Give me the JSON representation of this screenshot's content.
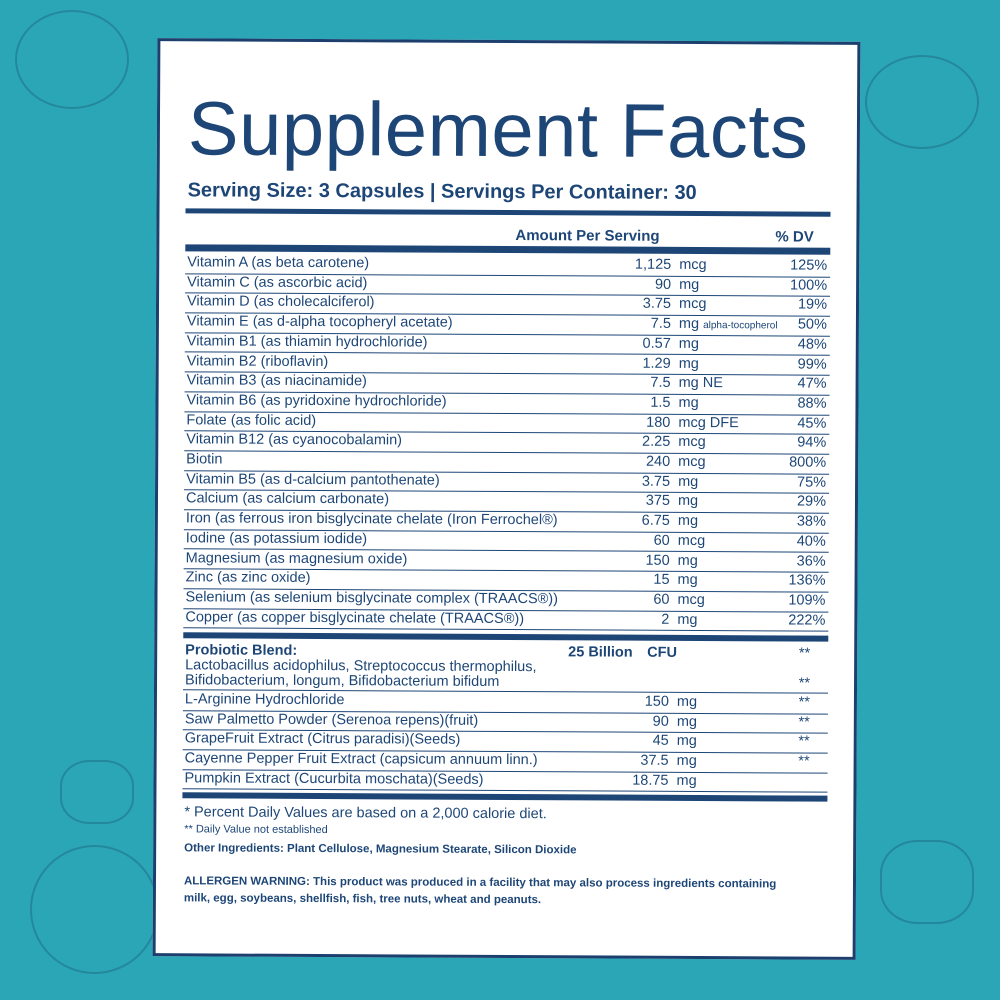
{
  "title": "Supplement Facts",
  "serving": "Serving Size: 3 Capsules | Servings Per Container: 30",
  "header": {
    "amount": "Amount Per Serving",
    "dv": "% DV"
  },
  "vitamins": [
    {
      "name": "Vitamin A (as beta carotene)",
      "amount": "1,125",
      "unit": "mcg",
      "dv": "125%"
    },
    {
      "name": "Vitamin C (as ascorbic acid)",
      "amount": "90",
      "unit": "mg",
      "dv": "100%"
    },
    {
      "name": "Vitamin D (as cholecalciferol)",
      "amount": "3.75",
      "unit": "mcg",
      "dv": "19%"
    },
    {
      "name": "Vitamin E (as d-alpha tocopheryl acetate)",
      "amount": "7.5",
      "unit": "mg",
      "unit_note": "alpha-tocopherol",
      "dv": "50%"
    },
    {
      "name": "Vitamin B1 (as thiamin hydrochloride)",
      "amount": "0.57",
      "unit": "mg",
      "dv": "48%"
    },
    {
      "name": "Vitamin B2 (riboflavin)",
      "amount": "1.29",
      "unit": "mg",
      "dv": "99%"
    },
    {
      "name": "Vitamin B3 (as niacinamide)",
      "amount": "7.5",
      "unit": "mg NE",
      "dv": "47%"
    },
    {
      "name": "Vitamin B6 (as pyridoxine hydrochloride)",
      "amount": "1.5",
      "unit": "mg",
      "dv": "88%"
    },
    {
      "name": "Folate (as folic acid)",
      "amount": "180",
      "unit": "mcg DFE",
      "dv": "45%"
    },
    {
      "name": "Vitamin B12 (as cyanocobalamin)",
      "amount": "2.25",
      "unit": "mcg",
      "dv": "94%"
    },
    {
      "name": "Biotin",
      "amount": "240",
      "unit": "mcg",
      "dv": "800%"
    },
    {
      "name": "Vitamin B5 (as d-calcium pantothenate)",
      "amount": "3.75",
      "unit": "mg",
      "dv": "75%"
    },
    {
      "name": "Calcium (as calcium carbonate)",
      "amount": "375",
      "unit": "mg",
      "dv": "29%"
    },
    {
      "name": "Iron (as ferrous iron bisglycinate chelate (Iron Ferrochel®)",
      "amount": "6.75",
      "unit": "mg",
      "dv": "38%"
    },
    {
      "name": "Iodine (as potassium iodide)",
      "amount": "60",
      "unit": "mcg",
      "dv": "40%"
    },
    {
      "name": "Magnesium (as magnesium oxide)",
      "amount": "150",
      "unit": "mg",
      "dv": "36%"
    },
    {
      "name": "Zinc (as zinc oxide)",
      "amount": "15",
      "unit": "mg",
      "dv": "136%"
    },
    {
      "name": "Selenium (as selenium bisglycinate complex (TRAACS®))",
      "amount": "60",
      "unit": "mcg",
      "dv": "109%"
    },
    {
      "name": "Copper (as copper bisglycinate chelate (TRAACS®))",
      "amount": "2",
      "unit": "mg",
      "dv": "222%"
    }
  ],
  "probiotic": {
    "label": "Probiotic Blend:",
    "amount": "25 Billion",
    "unit": "CFU",
    "dv": "**",
    "line1": "Lactobacillus acidophilus, Streptococcus thermophilus,",
    "line2": "Bifidobacterium, longum, Bifidobacterium bifidum",
    "dv2": "**"
  },
  "others": [
    {
      "name": "L-Arginine Hydrochloride",
      "amount": "150",
      "unit": "mg",
      "dv": "**"
    },
    {
      "name": "Saw Palmetto Powder (Serenoa repens)(fruit)",
      "amount": "90",
      "unit": "mg",
      "dv": "**"
    },
    {
      "name": "GrapeFruit Extract (Citrus paradisi)(Seeds)",
      "amount": "45",
      "unit": "mg",
      "dv": "**"
    },
    {
      "name": "Cayenne Pepper Fruit Extract (capsicum annuum linn.)",
      "amount": "37.5",
      "unit": "mg",
      "dv": "**"
    },
    {
      "name": "Pumpkin Extract (Cucurbita moschata)(Seeds)",
      "amount": "18.75",
      "unit": "mg",
      "dv": ""
    }
  ],
  "footnotes": {
    "dv_basis": "* Percent Daily Values are based on a 2,000 calorie diet.",
    "not_established": "** Daily Value not established",
    "other_ingredients": "Other Ingredients: Plant Cellulose, Magnesium Stearate, Silicon Dioxide",
    "allergen_1": "ALLERGEN WARNING: This product was produced in a facility that may also process ingredients containing",
    "allergen_2": "milk, egg, soybeans, shellfish, fish, tree nuts, wheat and peanuts."
  },
  "colors": {
    "background": "#2ba6b7",
    "text": "#1d4677"
  }
}
